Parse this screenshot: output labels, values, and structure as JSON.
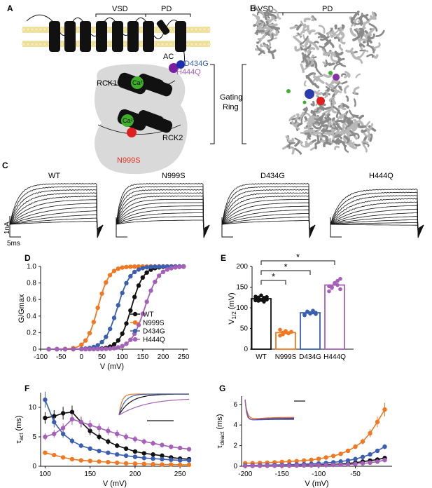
{
  "panels": {
    "A": "A",
    "B": "B",
    "C": "C",
    "D": "D",
    "E": "E",
    "F": "F",
    "G": "G"
  },
  "panelA": {
    "vsd": "VSD",
    "pd": "PD",
    "ac": "AC",
    "rck1": "RCK1",
    "rck2": "RCK2",
    "ca": "Ca²⁺",
    "gating1": "Gating",
    "gating2": "Ring",
    "d434g": "D434G",
    "h444q": "H444Q",
    "n999s": "N999S"
  },
  "panelB": {
    "vsd": "VSD",
    "pd": "PD"
  },
  "panelC": {
    "labels": [
      "WT",
      "N999S",
      "D434G",
      "H444Q"
    ],
    "scale_current": "1nA",
    "scale_time": "5ms"
  },
  "colors": {
    "WT": "#111111",
    "N999S": "#f07820",
    "D434G": "#3a5fb0",
    "H444Q": "#a560b8",
    "membrane": "#f0e3a0",
    "ring": "#d9d9d9"
  },
  "chart_data": [
    {
      "panel": "D",
      "type": "line",
      "xlabel": "V (mV)",
      "ylabel": "G/Gmax",
      "xlim": [
        -100,
        260
      ],
      "ylim": [
        0,
        1.0
      ],
      "xticks": [
        -100,
        -50,
        0,
        50,
        100,
        150,
        200,
        250
      ],
      "yticks": [
        0,
        0.2,
        0.4,
        0.6,
        0.8,
        1.0
      ],
      "x": [
        -80,
        -60,
        -40,
        -20,
        0,
        10,
        20,
        30,
        40,
        50,
        60,
        70,
        80,
        90,
        100,
        110,
        120,
        130,
        140,
        150,
        160,
        170,
        180,
        190,
        200,
        210,
        220,
        230,
        240,
        250
      ],
      "series": [
        {
          "name": "WT",
          "v_half": 122,
          "slope": 15
        },
        {
          "name": "N999S",
          "v_half": 40,
          "slope": 14
        },
        {
          "name": "D434G",
          "v_half": 88,
          "slope": 16
        },
        {
          "name": "H444Q",
          "v_half": 155,
          "slope": 17
        }
      ],
      "legend": "bottom-right"
    },
    {
      "panel": "E",
      "type": "bar",
      "ylabel": "V1/2 (mV)",
      "ylim": [
        0,
        200
      ],
      "yticks": [
        0,
        50,
        100,
        150,
        200
      ],
      "categories": [
        "WT",
        "N999S",
        "D434G",
        "H444Q"
      ],
      "values": [
        122,
        40,
        88,
        155
      ],
      "points": [
        [
          118,
          125,
          130,
          115,
          120,
          127,
          122,
          119,
          124,
          126,
          121,
          117
        ],
        [
          33,
          40,
          44,
          38,
          42,
          47,
          36,
          41,
          39
        ],
        [
          82,
          90,
          86,
          93,
          88,
          84,
          91,
          87,
          89,
          85
        ],
        [
          140,
          150,
          158,
          165,
          170,
          152,
          148,
          160,
          155,
          145
        ]
      ],
      "significance": [
        "*",
        "*",
        "*"
      ]
    },
    {
      "panel": "F",
      "type": "line",
      "xlabel": "V (mV)",
      "ylabel": "τact (ms)",
      "xlim": [
        95,
        260
      ],
      "ylim": [
        0,
        12.5
      ],
      "xticks": [
        100,
        150,
        200,
        250
      ],
      "yticks": [
        0,
        5,
        10
      ],
      "x": [
        100,
        110,
        120,
        130,
        140,
        150,
        160,
        170,
        180,
        190,
        200,
        210,
        220,
        230,
        240,
        250,
        260
      ],
      "series": [
        {
          "name": "WT",
          "values": [
            8.2,
            8.5,
            9.0,
            9.2,
            7.5,
            6.0,
            5.0,
            4.2,
            3.5,
            3.0,
            2.5,
            2.2,
            2.0,
            1.8,
            1.5,
            1.3,
            1.2
          ]
        },
        {
          "name": "N999S",
          "values": [
            2.3,
            1.9,
            1.5,
            1.2,
            1.0,
            0.9,
            0.8,
            0.7,
            0.6,
            0.5,
            0.45,
            0.4,
            0.35,
            0.3,
            0.3,
            0.25,
            0.25
          ]
        },
        {
          "name": "D434G",
          "values": [
            11.3,
            7.5,
            5.5,
            4.3,
            3.5,
            3.0,
            2.6,
            2.3,
            2.0,
            1.8,
            1.6,
            1.4,
            1.3,
            1.2,
            1.1,
            1.0,
            1.0
          ]
        },
        {
          "name": "H444Q",
          "values": [
            5.0,
            5.5,
            6.5,
            8.0,
            7.5,
            7.0,
            6.5,
            6.0,
            5.5,
            5.0,
            4.6,
            4.2,
            3.9,
            3.6,
            3.3,
            3.1,
            2.9
          ]
        }
      ]
    },
    {
      "panel": "G",
      "type": "line",
      "xlabel": "V (mV)",
      "ylabel": "τdeact (ms)",
      "xlim": [
        -205,
        0
      ],
      "ylim": [
        0,
        6.8
      ],
      "xticks": [
        -200,
        -150,
        -100,
        -50
      ],
      "yticks": [
        0,
        2,
        4,
        6
      ],
      "x": [
        -200,
        -190,
        -180,
        -170,
        -160,
        -150,
        -140,
        -130,
        -120,
        -110,
        -100,
        -90,
        -80,
        -70,
        -60,
        -50,
        -40,
        -30,
        -20,
        -10
      ],
      "series": [
        {
          "name": "WT",
          "values": [
            0.05,
            0.05,
            0.06,
            0.06,
            0.07,
            0.07,
            0.08,
            0.09,
            0.1,
            0.11,
            0.13,
            0.15,
            0.18,
            0.22,
            0.28,
            0.35,
            0.45,
            0.55,
            0.65,
            0.8
          ]
        },
        {
          "name": "N999S",
          "values": [
            0.3,
            0.3,
            0.32,
            0.35,
            0.38,
            0.42,
            0.46,
            0.5,
            0.56,
            0.62,
            0.72,
            0.85,
            1.0,
            1.2,
            1.5,
            1.9,
            2.4,
            3.2,
            4.3,
            5.5
          ]
        },
        {
          "name": "D434G",
          "values": [
            0.08,
            0.09,
            0.1,
            0.11,
            0.12,
            0.13,
            0.15,
            0.17,
            0.2,
            0.23,
            0.27,
            0.32,
            0.38,
            0.46,
            0.56,
            0.7,
            0.9,
            1.15,
            1.5,
            1.9
          ]
        },
        {
          "name": "H444Q",
          "values": [
            0.04,
            0.04,
            0.05,
            0.05,
            0.05,
            0.06,
            0.06,
            0.07,
            0.08,
            0.09,
            0.1,
            0.11,
            0.13,
            0.15,
            0.18,
            0.22,
            0.28,
            0.35,
            0.45,
            0.6
          ]
        }
      ]
    }
  ]
}
